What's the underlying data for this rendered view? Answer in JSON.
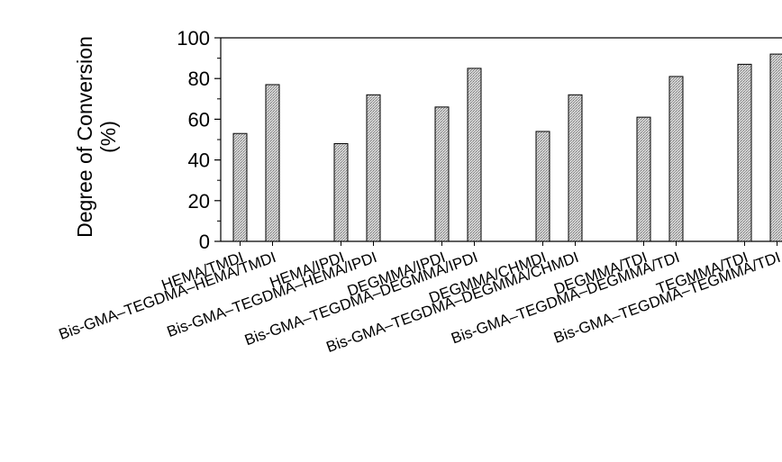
{
  "chart_data": {
    "type": "bar",
    "title": "",
    "xlabel": "",
    "ylabel": "Degree of Conversion",
    "ylabel_unit": "(%)",
    "ylim": [
      0,
      100
    ],
    "yticks": [
      "0",
      "20",
      "40",
      "60",
      "80",
      "100"
    ],
    "grid": false,
    "categories": [
      "HEMA/TMDI",
      "Bis-GMA–TEGDMA–HEMA/TMDI",
      "HEMA/IPDI",
      "Bis-GMA–TEGDMA–HEMA/IPDI",
      "DEGMMA/IPDI",
      "Bis-GMA–TEGDMA–DEGMMA/IPDI",
      "DEGMMA/CHMDI",
      "Bis-GMA–TEGDMA–DEGMMA/CHMDI",
      "DEGMMA/TDI",
      "Bis-GMA–TEGDMA–DEGMMA/TDI",
      "TEGMMA/TDI",
      "Bis-GMA–TEGDMA–TEGMMA/TDI"
    ],
    "values": [
      53,
      77,
      48,
      72,
      66,
      85,
      54,
      72,
      61,
      81,
      87,
      92
    ],
    "bar_color": "#b8b8b8",
    "bar_stroke": "#000000"
  }
}
